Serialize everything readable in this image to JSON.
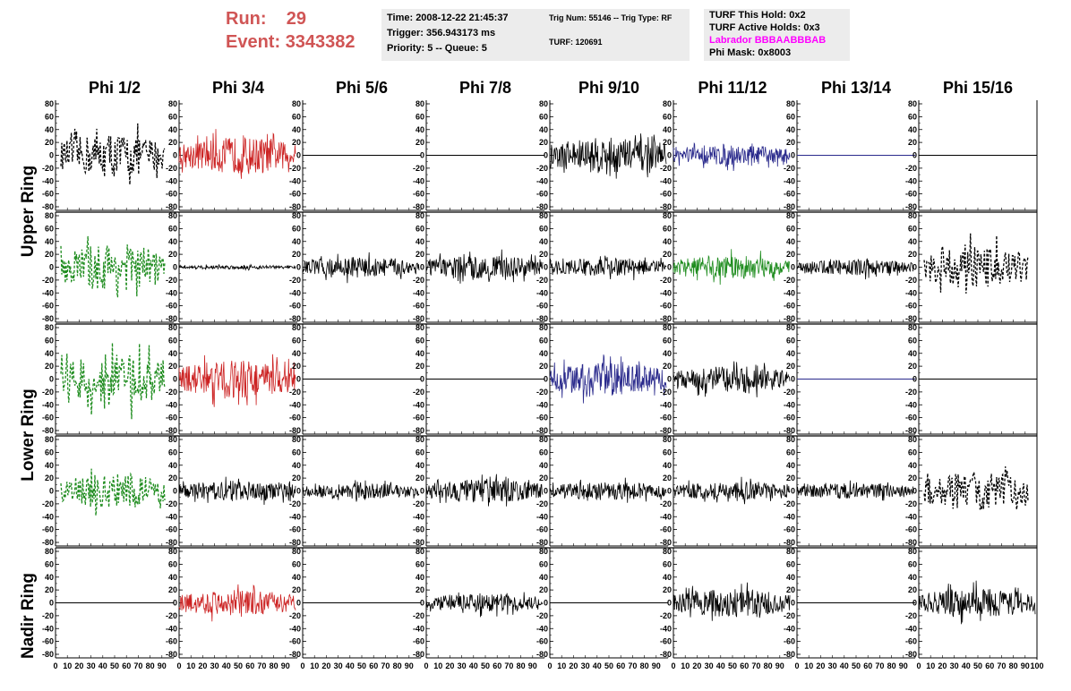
{
  "header": {
    "run_label": "Run:",
    "run_value": "29",
    "event_label": "Event:",
    "event_value": "3343382"
  },
  "info_time": {
    "time": "Time: 2008-12-22 21:45:37",
    "trigger": "Trigger: 356.943173 ms",
    "priority": "Priority: 5 -- Queue: 5"
  },
  "info_trig": {
    "trig": "Trig Num: 55146 -- Trig Type: RF",
    "turf": "TURF: 120691"
  },
  "info_turf": {
    "this_hold": "TURF This Hold: 0x2",
    "active_holds": "TURF Active Holds: 0x3",
    "labrador": "Labrador BBBAABBBAB",
    "phi_mask": "Phi Mask: 0x8003"
  },
  "colors": {
    "run_text": "#d05555",
    "info_bg": "#ececec",
    "labrador": "#ff00ff",
    "black": "#000000",
    "red": "#cc2222",
    "blue": "#2a2a8c",
    "green": "#1e8c1e"
  },
  "chart_data": {
    "type": "line",
    "columns": [
      "Phi 1/2",
      "Phi 3/4",
      "Phi 5/6",
      "Phi 7/8",
      "Phi 9/10",
      "Phi 11/12",
      "Phi 13/14",
      "Phi 15/16"
    ],
    "ring_labels": [
      "Upper Ring",
      "Lower Ring",
      "Nadir Ring"
    ],
    "ylim": [
      -80,
      80
    ],
    "xlim": [
      0,
      100
    ],
    "yticks": [
      80,
      60,
      40,
      20,
      0,
      -20,
      -40,
      -60,
      -80
    ],
    "xtick_labels": [
      "0",
      "10",
      "20",
      "30",
      "40",
      "50",
      "60",
      "70",
      "80",
      "90",
      "100"
    ],
    "grid": false,
    "panels": [
      [
        {
          "color": "black",
          "style": "dashed",
          "amp": 35
        },
        {
          "color": "red",
          "style": "solid",
          "amp": 28
        },
        {
          "color": "black",
          "style": "flat",
          "amp": 0
        },
        {
          "color": "black",
          "style": "flat",
          "amp": 0
        },
        {
          "color": "black",
          "style": "solid",
          "amp": 28
        },
        {
          "color": "blue",
          "style": "solid",
          "amp": 16
        },
        {
          "color": "blue",
          "style": "flat",
          "amp": 0
        },
        {
          "color": "black",
          "style": "flat",
          "amp": 0
        }
      ],
      [
        {
          "color": "green",
          "style": "dashed",
          "amp": 38
        },
        {
          "color": "black",
          "style": "solid",
          "amp": 3
        },
        {
          "color": "black",
          "style": "solid",
          "amp": 16
        },
        {
          "color": "black",
          "style": "solid",
          "amp": 18
        },
        {
          "color": "black",
          "style": "solid",
          "amp": 14
        },
        {
          "color": "green",
          "style": "solid",
          "amp": 18
        },
        {
          "color": "black",
          "style": "solid",
          "amp": 12
        },
        {
          "color": "black",
          "style": "dashed",
          "amp": 34
        }
      ],
      [
        {
          "color": "green",
          "style": "dashed",
          "amp": 42
        },
        {
          "color": "red",
          "style": "solid",
          "amp": 30
        },
        {
          "color": "black",
          "style": "flat",
          "amp": 0
        },
        {
          "color": "black",
          "style": "flat",
          "amp": 0
        },
        {
          "color": "blue",
          "style": "solid",
          "amp": 26
        },
        {
          "color": "black",
          "style": "solid",
          "amp": 20
        },
        {
          "color": "blue",
          "style": "flat",
          "amp": 0
        },
        {
          "color": "black",
          "style": "flat",
          "amp": 0
        }
      ],
      [
        {
          "color": "green",
          "style": "dashed",
          "amp": 28
        },
        {
          "color": "black",
          "style": "solid",
          "amp": 16
        },
        {
          "color": "black",
          "style": "solid",
          "amp": 12
        },
        {
          "color": "black",
          "style": "solid",
          "amp": 18
        },
        {
          "color": "black",
          "style": "solid",
          "amp": 14
        },
        {
          "color": "black",
          "style": "solid",
          "amp": 14
        },
        {
          "color": "black",
          "style": "solid",
          "amp": 12
        },
        {
          "color": "black",
          "style": "dashed",
          "amp": 30
        }
      ],
      [
        {
          "color": "black",
          "style": "flat",
          "amp": 0
        },
        {
          "color": "red",
          "style": "solid",
          "amp": 20
        },
        {
          "color": "black",
          "style": "flat",
          "amp": 0
        },
        {
          "color": "black",
          "style": "solid",
          "amp": 14
        },
        {
          "color": "black",
          "style": "flat",
          "amp": 0
        },
        {
          "color": "black",
          "style": "solid",
          "amp": 22
        },
        {
          "color": "black",
          "style": "flat",
          "amp": 0
        },
        {
          "color": "black",
          "style": "solid",
          "amp": 22
        }
      ]
    ]
  }
}
